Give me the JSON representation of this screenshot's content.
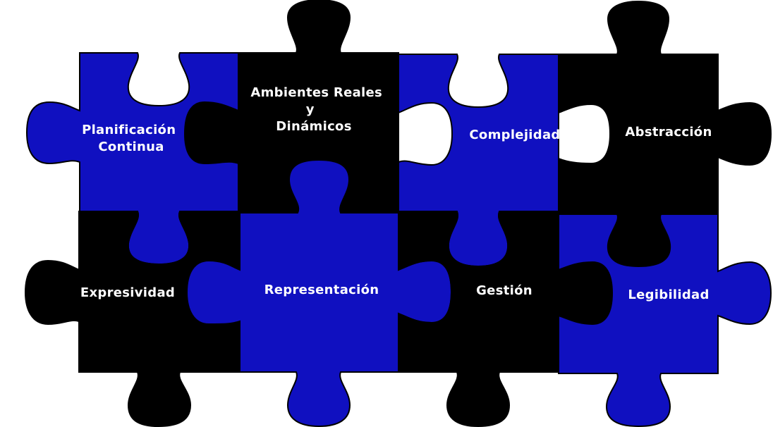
{
  "colors": {
    "blue": "#1010c0",
    "black": "#000000",
    "outline": "#000000",
    "text": "#ffffff"
  },
  "pieces": [
    {
      "id": "planificacion",
      "lines": [
        "Planificación",
        "Continua"
      ],
      "fill": "blue"
    },
    {
      "id": "ambientes",
      "lines": [
        "Ambientes Reales",
        "y",
        "Dinámicos"
      ],
      "fill": "black"
    },
    {
      "id": "complejidad",
      "lines": [
        "Complejidad"
      ],
      "fill": "blue"
    },
    {
      "id": "abstraccion",
      "lines": [
        "Abstracción"
      ],
      "fill": "black"
    },
    {
      "id": "expresividad",
      "lines": [
        "Expresividad"
      ],
      "fill": "black"
    },
    {
      "id": "representacion",
      "lines": [
        "Representación"
      ],
      "fill": "blue"
    },
    {
      "id": "gestion",
      "lines": [
        "Gestión"
      ],
      "fill": "black"
    },
    {
      "id": "legibilidad",
      "lines": [
        "Legibilidad"
      ],
      "fill": "blue"
    }
  ]
}
